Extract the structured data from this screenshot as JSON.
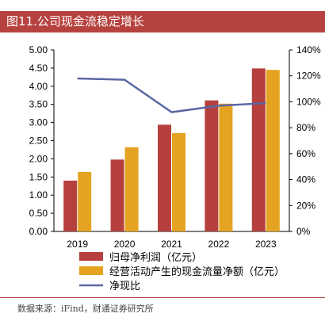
{
  "header": {
    "title": "图11.公司现金流稳定增长"
  },
  "footer": {
    "source": "数据来源：iFind，财通证券研究所"
  },
  "colors": {
    "bar1": "#b5403d",
    "bar2": "#e4a321",
    "line": "#5b67a4",
    "title_bg": "#b6423f"
  },
  "chart_data": {
    "type": "bar",
    "categories": [
      "2019",
      "2020",
      "2021",
      "2022",
      "2023"
    ],
    "left_axis": {
      "ylim": [
        0,
        5
      ],
      "ticks": [
        "0.00",
        "0.50",
        "1.00",
        "1.50",
        "2.00",
        "2.50",
        "3.00",
        "3.50",
        "4.00",
        "4.50",
        "5.00"
      ]
    },
    "right_axis": {
      "ylim": [
        0,
        140
      ],
      "ticks": [
        "0%",
        "20%",
        "40%",
        "60%",
        "80%",
        "100%",
        "120%",
        "140%"
      ]
    },
    "series": [
      {
        "name": "归母净利润（亿元）",
        "kind": "bar",
        "axis": "left",
        "color": "#b5403d",
        "values": [
          1.4,
          1.98,
          2.94,
          3.61,
          4.49
        ]
      },
      {
        "name": "经营活动产生的现金流量净额（亿元）",
        "kind": "bar",
        "axis": "left",
        "color": "#e4a321",
        "values": [
          1.64,
          2.32,
          2.71,
          3.52,
          4.45
        ]
      },
      {
        "name": "净现比",
        "kind": "line",
        "axis": "right",
        "color": "#5b67a4",
        "values": [
          118,
          117,
          92,
          97,
          99
        ]
      }
    ],
    "grid": false,
    "legend": "bottom"
  }
}
